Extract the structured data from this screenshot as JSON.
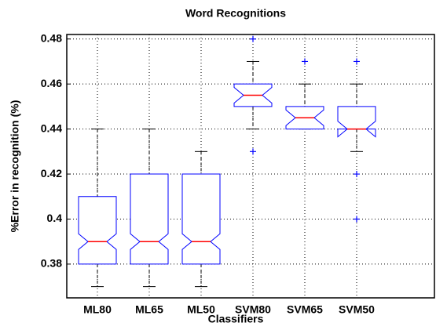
{
  "chart_data": {
    "type": "box",
    "title": "Word Recognitions",
    "x_label": "Classifiers",
    "y_label": "%Error in recognition (%)",
    "categories": [
      "ML80",
      "ML65",
      "ML50",
      "SVM80",
      "SVM65",
      "SVM50"
    ],
    "boxes": [
      {
        "min": 0.37,
        "q1": 0.38,
        "median": 0.39,
        "q3": 0.41,
        "max": 0.44,
        "outliers": []
      },
      {
        "min": 0.37,
        "q1": 0.38,
        "median": 0.39,
        "q3": 0.42,
        "max": 0.44,
        "outliers": []
      },
      {
        "min": 0.37,
        "q1": 0.38,
        "median": 0.39,
        "q3": 0.42,
        "max": 0.43,
        "outliers": []
      },
      {
        "min": 0.44,
        "q1": 0.45,
        "median": 0.455,
        "q3": 0.46,
        "max": 0.47,
        "outliers": [
          0.48,
          0.43
        ]
      },
      {
        "min": 0.44,
        "q1": 0.44,
        "median": 0.445,
        "q3": 0.45,
        "max": 0.46,
        "outliers": [
          0.47
        ]
      },
      {
        "min": 0.43,
        "q1": 0.44,
        "median": 0.44,
        "q3": 0.45,
        "max": 0.46,
        "outliers": [
          0.47,
          0.42,
          0.4
        ]
      }
    ],
    "box_color": "#0000ff",
    "median_color": "#ff0000",
    "outlier_color": "#0000ff",
    "whisker_color": "#000000",
    "ylim": [
      0.365,
      0.482
    ],
    "yticks": [
      0.38,
      0.4,
      0.42,
      0.44,
      0.46,
      0.48
    ],
    "grid": true
  }
}
